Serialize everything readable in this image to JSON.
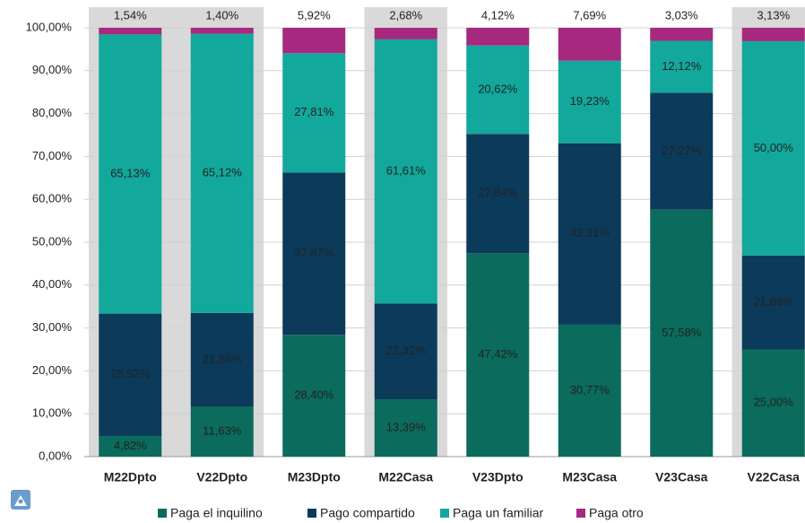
{
  "chart_data": {
    "type": "stacked_bar",
    "categories": [
      "M22Dpto",
      "V22Dpto",
      "M23Dpto",
      "M22Casa",
      "V23Dpto",
      "M23Casa",
      "V23Casa",
      "V22Casa"
    ],
    "series": [
      {
        "name": "Paga el inquilino",
        "color": "#0b6b5c",
        "values": [
          4.82,
          11.63,
          28.4,
          13.39,
          47.42,
          30.77,
          57.58,
          25.0
        ],
        "value_labels": [
          "4,82%",
          "11,63%",
          "28,40%",
          "13,39%",
          "47,42%",
          "30,77%",
          "57,58%",
          "25,00%"
        ]
      },
      {
        "name": "Pago compartido",
        "color": "#0c3a5b",
        "values": [
          28.52,
          21.86,
          37.87,
          22.32,
          27.84,
          42.31,
          27.27,
          21.88
        ],
        "value_labels": [
          "28,52%",
          "21,86%",
          "37,87%",
          "22,32%",
          "27,84%",
          "42,31%",
          "27,27%",
          "21,88%"
        ]
      },
      {
        "name": "Paga un familiar",
        "color": "#12a89c",
        "values": [
          65.13,
          65.12,
          27.81,
          61.61,
          20.62,
          19.23,
          12.12,
          50.0
        ],
        "value_labels": [
          "65,13%",
          "65,12%",
          "27,81%",
          "61,61%",
          "20,62%",
          "19,23%",
          "12,12%",
          "50,00%"
        ]
      },
      {
        "name": "Paga otro",
        "color": "#a7287f",
        "values": [
          1.54,
          1.4,
          5.92,
          2.68,
          4.12,
          7.69,
          3.03,
          3.13
        ],
        "value_labels": [
          "1,54%",
          "1,40%",
          "5,92%",
          "2,68%",
          "4,12%",
          "7,69%",
          "3,03%",
          "3,13%"
        ]
      }
    ],
    "ylim": [
      0,
      100
    ],
    "yticks": [
      {
        "value": 0,
        "label": "0,00%"
      },
      {
        "value": 10,
        "label": "10,00%"
      },
      {
        "value": 20,
        "label": "20,00%"
      },
      {
        "value": 30,
        "label": "30,00%"
      },
      {
        "value": 40,
        "label": "40,00%"
      },
      {
        "value": 50,
        "label": "50,00%"
      },
      {
        "value": 60,
        "label": "60,00%"
      },
      {
        "value": 70,
        "label": "70,00%"
      },
      {
        "value": 80,
        "label": "80,00%"
      },
      {
        "value": 90,
        "label": "90,00%"
      },
      {
        "value": 100,
        "label": "100,00%"
      }
    ],
    "grid": true
  }
}
